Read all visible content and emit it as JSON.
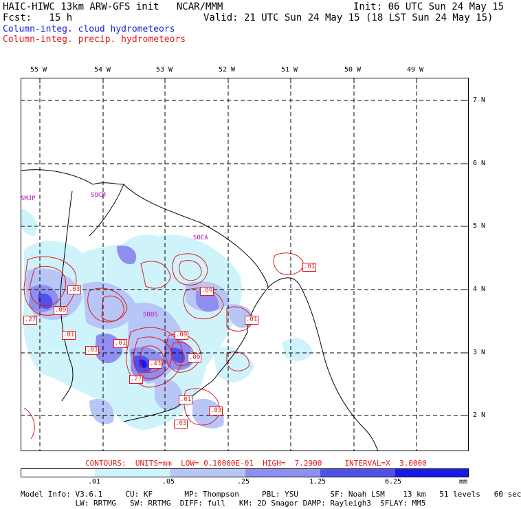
{
  "header": {
    "title": "HAIC-HIWC 13km ARW-GFS init   NCAR/MMM",
    "init": "Init: 06 UTC Sun 24 May 15",
    "fcst": "Fcst:   15 h",
    "valid": "Valid: 21 UTC Sun 24 May 15 (18 LST Sun 24 May 15)",
    "legend_cloud": "Column-integ. cloud hydrometeors",
    "legend_precip": "Column-integ. precip. hydrometeors"
  },
  "map": {
    "lon_labels": [
      "55 W",
      "54 W",
      "53 W",
      "52 W",
      "51 W",
      "50 W",
      "49 W"
    ],
    "lat_labels": [
      "7 N",
      "6 N",
      "5 N",
      "4 N",
      "3 N",
      "2 N"
    ],
    "stations": [
      "SMJP",
      "SOCM",
      "SOCA",
      "SOOS"
    ],
    "contour_labels": [
      ".03",
      ".09",
      ".27",
      ".01",
      ".03",
      ".01",
      ".09",
      ".09",
      ".43",
      ".27",
      ".09",
      ".01",
      ".03",
      ".03",
      ".01",
      ".01"
    ]
  },
  "footer": {
    "contours": "CONTOURS:  UNITS=mm  LOW= 0.10000E-01  HIGH=  7.2900     INTERVAL=X  3.0000",
    "colorbar_ticks": [
      ".01",
      ".05",
      ".25",
      "1.25",
      "6.25"
    ],
    "colorbar_units": "mm",
    "colorbar_colors": [
      "#ffffff",
      "#cff3fb",
      "#b7c6f6",
      "#8f8ff0",
      "#5050ea",
      "#1a1ae6"
    ],
    "model_line1": "Model Info: V3.6.1     CU: KF       MP: Thompson     PBL: YSU       SF: Noah LSM    13 km   51 levels   60 sec",
    "model_line2": "            LW: RRTMG   SW: RRTMG  DIFF: full   KM: 2D Smagor DAMP: Rayleigh3  SFLAY: MM5"
  }
}
